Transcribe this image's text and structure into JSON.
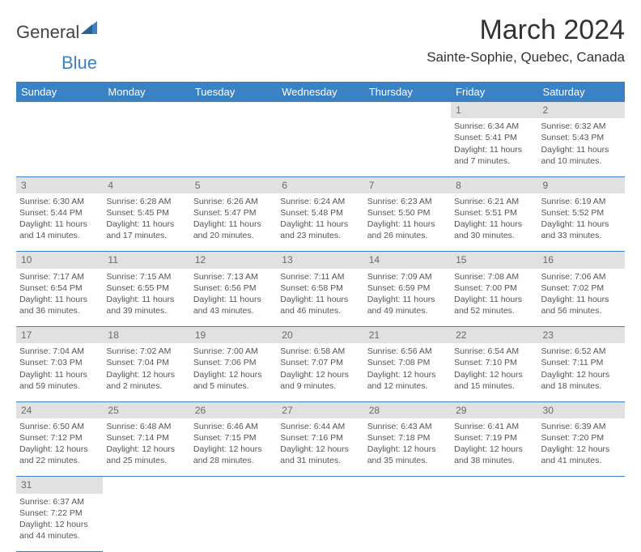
{
  "brand": {
    "part1": "General",
    "part2": "Blue"
  },
  "header": {
    "title": "March 2024",
    "location": "Sainte-Sophie, Quebec, Canada"
  },
  "colors": {
    "accent": "#3b82c4",
    "daynum_bg": "#e1e1e1",
    "text": "#555555"
  },
  "weekdays": [
    "Sunday",
    "Monday",
    "Tuesday",
    "Wednesday",
    "Thursday",
    "Friday",
    "Saturday"
  ],
  "weeks": [
    [
      null,
      null,
      null,
      null,
      null,
      {
        "n": 1,
        "sr": "6:34 AM",
        "ss": "5:41 PM",
        "dl": "11 hours and 7 minutes."
      },
      {
        "n": 2,
        "sr": "6:32 AM",
        "ss": "5:43 PM",
        "dl": "11 hours and 10 minutes."
      }
    ],
    [
      {
        "n": 3,
        "sr": "6:30 AM",
        "ss": "5:44 PM",
        "dl": "11 hours and 14 minutes."
      },
      {
        "n": 4,
        "sr": "6:28 AM",
        "ss": "5:45 PM",
        "dl": "11 hours and 17 minutes."
      },
      {
        "n": 5,
        "sr": "6:26 AM",
        "ss": "5:47 PM",
        "dl": "11 hours and 20 minutes."
      },
      {
        "n": 6,
        "sr": "6:24 AM",
        "ss": "5:48 PM",
        "dl": "11 hours and 23 minutes."
      },
      {
        "n": 7,
        "sr": "6:23 AM",
        "ss": "5:50 PM",
        "dl": "11 hours and 26 minutes."
      },
      {
        "n": 8,
        "sr": "6:21 AM",
        "ss": "5:51 PM",
        "dl": "11 hours and 30 minutes."
      },
      {
        "n": 9,
        "sr": "6:19 AM",
        "ss": "5:52 PM",
        "dl": "11 hours and 33 minutes."
      }
    ],
    [
      {
        "n": 10,
        "sr": "7:17 AM",
        "ss": "6:54 PM",
        "dl": "11 hours and 36 minutes."
      },
      {
        "n": 11,
        "sr": "7:15 AM",
        "ss": "6:55 PM",
        "dl": "11 hours and 39 minutes."
      },
      {
        "n": 12,
        "sr": "7:13 AM",
        "ss": "6:56 PM",
        "dl": "11 hours and 43 minutes."
      },
      {
        "n": 13,
        "sr": "7:11 AM",
        "ss": "6:58 PM",
        "dl": "11 hours and 46 minutes."
      },
      {
        "n": 14,
        "sr": "7:09 AM",
        "ss": "6:59 PM",
        "dl": "11 hours and 49 minutes."
      },
      {
        "n": 15,
        "sr": "7:08 AM",
        "ss": "7:00 PM",
        "dl": "11 hours and 52 minutes."
      },
      {
        "n": 16,
        "sr": "7:06 AM",
        "ss": "7:02 PM",
        "dl": "11 hours and 56 minutes."
      }
    ],
    [
      {
        "n": 17,
        "sr": "7:04 AM",
        "ss": "7:03 PM",
        "dl": "11 hours and 59 minutes."
      },
      {
        "n": 18,
        "sr": "7:02 AM",
        "ss": "7:04 PM",
        "dl": "12 hours and 2 minutes."
      },
      {
        "n": 19,
        "sr": "7:00 AM",
        "ss": "7:06 PM",
        "dl": "12 hours and 5 minutes."
      },
      {
        "n": 20,
        "sr": "6:58 AM",
        "ss": "7:07 PM",
        "dl": "12 hours and 9 minutes."
      },
      {
        "n": 21,
        "sr": "6:56 AM",
        "ss": "7:08 PM",
        "dl": "12 hours and 12 minutes."
      },
      {
        "n": 22,
        "sr": "6:54 AM",
        "ss": "7:10 PM",
        "dl": "12 hours and 15 minutes."
      },
      {
        "n": 23,
        "sr": "6:52 AM",
        "ss": "7:11 PM",
        "dl": "12 hours and 18 minutes."
      }
    ],
    [
      {
        "n": 24,
        "sr": "6:50 AM",
        "ss": "7:12 PM",
        "dl": "12 hours and 22 minutes."
      },
      {
        "n": 25,
        "sr": "6:48 AM",
        "ss": "7:14 PM",
        "dl": "12 hours and 25 minutes."
      },
      {
        "n": 26,
        "sr": "6:46 AM",
        "ss": "7:15 PM",
        "dl": "12 hours and 28 minutes."
      },
      {
        "n": 27,
        "sr": "6:44 AM",
        "ss": "7:16 PM",
        "dl": "12 hours and 31 minutes."
      },
      {
        "n": 28,
        "sr": "6:43 AM",
        "ss": "7:18 PM",
        "dl": "12 hours and 35 minutes."
      },
      {
        "n": 29,
        "sr": "6:41 AM",
        "ss": "7:19 PM",
        "dl": "12 hours and 38 minutes."
      },
      {
        "n": 30,
        "sr": "6:39 AM",
        "ss": "7:20 PM",
        "dl": "12 hours and 41 minutes."
      }
    ],
    [
      {
        "n": 31,
        "sr": "6:37 AM",
        "ss": "7:22 PM",
        "dl": "12 hours and 44 minutes."
      },
      null,
      null,
      null,
      null,
      null,
      null
    ]
  ],
  "labels": {
    "sunrise": "Sunrise:",
    "sunset": "Sunset:",
    "daylight": "Daylight:"
  }
}
